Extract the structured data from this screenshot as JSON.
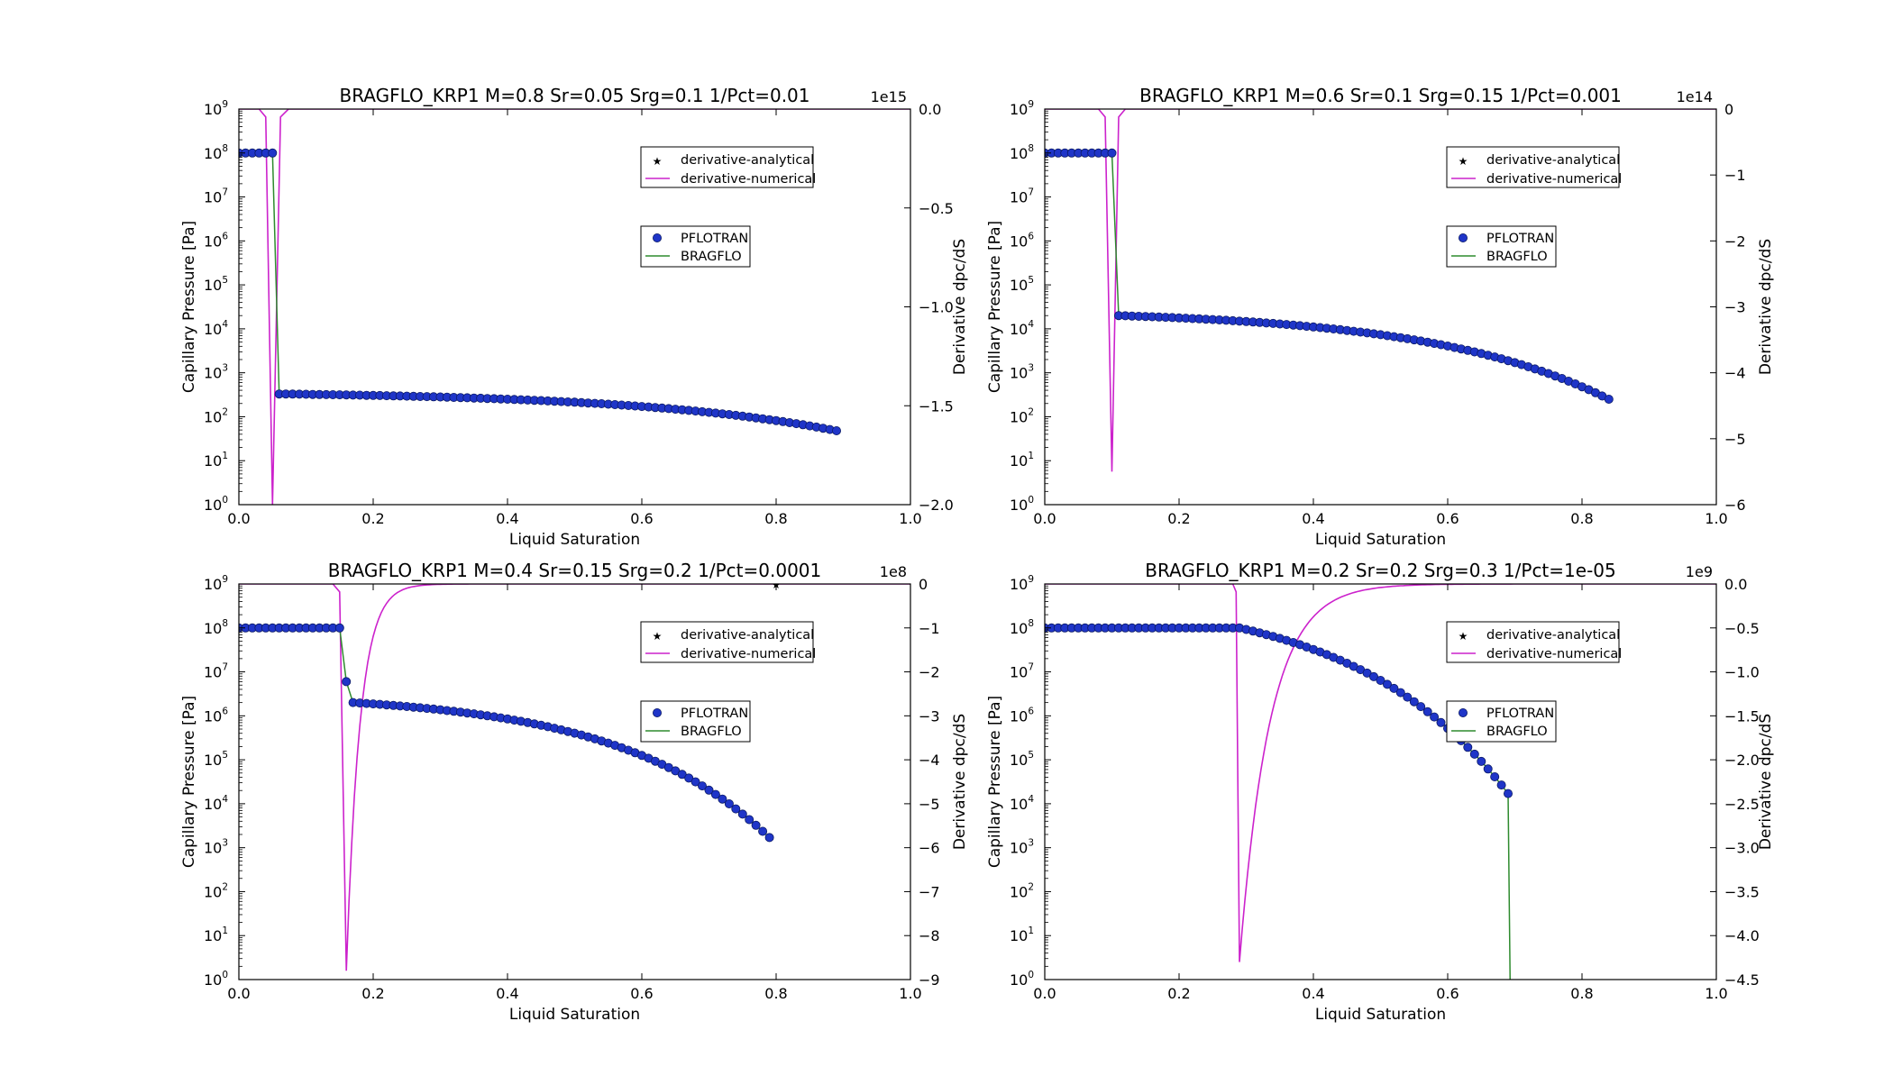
{
  "figure": {
    "x_label": "Liquid Saturation",
    "y_label": "Capillary Pressure [Pa]",
    "y2_label": "Derivative dpc/dS",
    "x_ticks": [
      "0.0",
      "0.2",
      "0.4",
      "0.6",
      "0.8",
      "1.0"
    ],
    "y_tick_exponents": [
      "0",
      "1",
      "2",
      "3",
      "4",
      "5",
      "6",
      "7",
      "8",
      "9"
    ],
    "y_tick_base": "10",
    "legend_top": [
      "derivative-analytical",
      "derivative-numerical"
    ],
    "legend_bottom": [
      "PFLOTRAN",
      "BRAGFLO"
    ],
    "colors": {
      "pflotran": "#1f35c8",
      "bragflo": "#2e8b2e",
      "numerical": "#cc22cc",
      "analytical": "#8b1a1a"
    }
  },
  "chart_data": [
    {
      "type": "line",
      "title": "BRAGFLO_KRP1 M=0.8 Sr=0.05 Srg=0.1 1/Pct=0.01",
      "xlabel": "Liquid Saturation",
      "ylabel": "Capillary Pressure [Pa]",
      "y2label": "Derivative dpc/dS",
      "xlim": [
        0,
        1
      ],
      "ylim": [
        1,
        1000000000.0
      ],
      "yscale": "log",
      "y2lim": [
        -2.0,
        0.0
      ],
      "y2_ticks": [
        "0.0",
        "−0.5",
        "−1.0",
        "−1.5",
        "−2.0"
      ],
      "y2_tick_values": [
        0,
        -0.5,
        -1.0,
        -1.5,
        -2.0
      ],
      "y2_offset": "1e15",
      "series": [
        {
          "name": "PFLOTRAN",
          "sr": 0.05,
          "s_end": 0.89,
          "pc_max": 100000000.0,
          "pc_jump": 330,
          "pc_end": 48,
          "log_decay_curvature": 0.55
        },
        {
          "name": "BRAGFLO",
          "note": "same curve as PFLOTRAN"
        },
        {
          "name": "derivative-numerical",
          "spike_s": 0.05,
          "spike_min": -2.0,
          "spike_half_width_left": 0.01,
          "spike_half_width_right": 0.012
        },
        {
          "name": "derivative-analytical",
          "points": []
        }
      ]
    },
    {
      "type": "line",
      "title": "BRAGFLO_KRP1 M=0.6 Sr=0.1 Srg=0.15 1/Pct=0.001",
      "xlabel": "Liquid Saturation",
      "ylabel": "Capillary Pressure [Pa]",
      "y2label": "Derivative dpc/dS",
      "xlim": [
        0,
        1
      ],
      "ylim": [
        1,
        1000000000.0
      ],
      "yscale": "log",
      "y2lim": [
        -6,
        0
      ],
      "y2_ticks": [
        "0",
        "−1",
        "−2",
        "−3",
        "−4",
        "−5",
        "−6"
      ],
      "y2_tick_values": [
        0,
        -1,
        -2,
        -3,
        -4,
        -5,
        -6
      ],
      "y2_offset": "1e14",
      "series": [
        {
          "name": "PFLOTRAN",
          "sr": 0.1,
          "s_end": 0.84,
          "pc_max": 100000000.0,
          "pc_jump": 20000,
          "pc_end": 250,
          "log_decay_curvature": 0.55
        },
        {
          "name": "BRAGFLO",
          "note": "same curve as PFLOTRAN"
        },
        {
          "name": "derivative-numerical",
          "spike_s": 0.1,
          "spike_min": -5.5,
          "spike_half_width_left": 0.01,
          "spike_half_width_right": 0.01
        },
        {
          "name": "derivative-analytical",
          "points": []
        }
      ]
    },
    {
      "type": "line",
      "title": "BRAGFLO_KRP1 M=0.4 Sr=0.15 Srg=0.2 1/Pct=0.0001",
      "xlabel": "Liquid Saturation",
      "ylabel": "Capillary Pressure [Pa]",
      "y2label": "Derivative dpc/dS",
      "xlim": [
        0,
        1
      ],
      "ylim": [
        1,
        1000000000.0
      ],
      "yscale": "log",
      "y2lim": [
        -9,
        0
      ],
      "y2_ticks": [
        "0",
        "−1",
        "−2",
        "−3",
        "−4",
        "−5",
        "−6",
        "−7",
        "−8",
        "−9"
      ],
      "y2_tick_values": [
        0,
        -1,
        -2,
        -3,
        -4,
        -5,
        -6,
        -7,
        -8,
        -9
      ],
      "y2_offset": "1e8",
      "series": [
        {
          "name": "PFLOTRAN",
          "sr": 0.15,
          "s_end": 0.79,
          "pc_max": 100000000.0,
          "pc_first": 6000000.0,
          "pc_jump": 2000000.0,
          "pc_end": 1700,
          "log_decay_curvature": 0.55
        },
        {
          "name": "BRAGFLO",
          "note": "same curve as PFLOTRAN"
        },
        {
          "name": "derivative-numerical",
          "spike_s": 0.16,
          "spike_min": -8.8,
          "spike_half_width_left": 0.01,
          "recovery_scale": 0.02
        },
        {
          "name": "derivative-analytical",
          "points": [
            [
              0.8,
              0
            ]
          ]
        }
      ]
    },
    {
      "type": "line",
      "title": "BRAGFLO_KRP1 M=0.2 Sr=0.2 Srg=0.3 1/Pct=1e-05",
      "xlabel": "Liquid Saturation",
      "ylabel": "Capillary Pressure [Pa]",
      "y2label": "Derivative dpc/dS",
      "xlim": [
        0,
        1
      ],
      "ylim": [
        1,
        1000000000.0
      ],
      "yscale": "log",
      "y2lim": [
        -4.5,
        0.0
      ],
      "y2_ticks": [
        "0.0",
        "−0.5",
        "−1.0",
        "−1.5",
        "−2.0",
        "−2.5",
        "−3.0",
        "−3.5",
        "−4.0",
        "−4.5"
      ],
      "y2_tick_values": [
        0,
        -0.5,
        -1.0,
        -1.5,
        -2.0,
        -2.5,
        -3.0,
        -3.5,
        -4.0,
        -4.5
      ],
      "y2_offset": "1e9",
      "series": [
        {
          "name": "PFLOTRAN",
          "sr": 0.28,
          "s_end": 0.69,
          "pc_max": 100000000.0,
          "pc_jump": 100000000.0,
          "pc_end": 17000,
          "log_decay_curvature": 0.35
        },
        {
          "name": "BRAGFLO",
          "note": "same curve as PFLOTRAN, drops below axis after last point",
          "drop_to_s": 0.695
        },
        {
          "name": "derivative-numerical",
          "spike_s": 0.29,
          "spike_min": -4.3,
          "spike_half_width_left": 0.005,
          "recovery_scale": 0.045
        },
        {
          "name": "derivative-analytical",
          "points": []
        }
      ]
    }
  ]
}
